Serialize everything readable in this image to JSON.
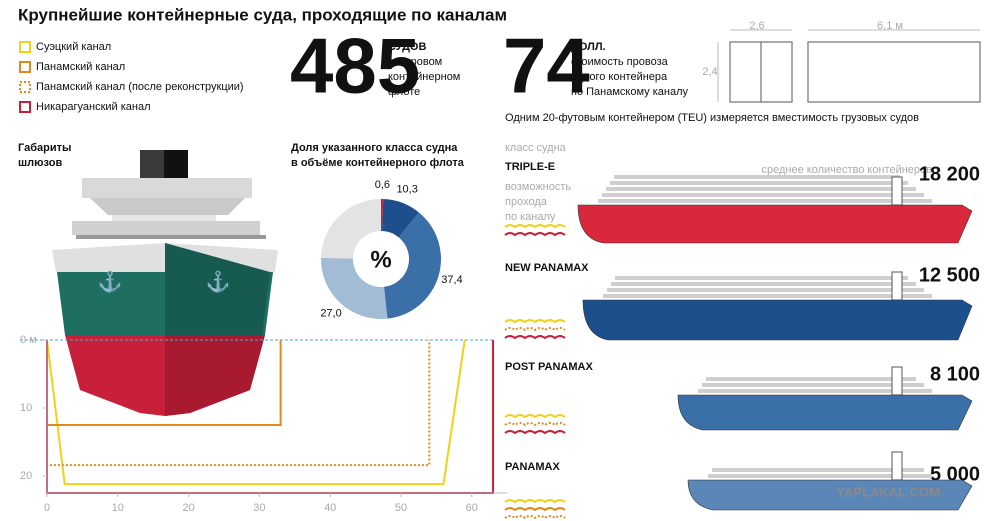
{
  "title": "Крупнейшие контейнерные суда, проходящие по каналам",
  "legend": [
    {
      "label": "Суэцкий канал",
      "color": "#f2d11b",
      "dashed": false
    },
    {
      "label": "Панамский канал",
      "color": "#e08a1e",
      "dashed": false
    },
    {
      "label": "Панамский канал (после реконструкции)",
      "color": "#e08a1e",
      "dashed": true
    },
    {
      "label": "Никарагуанский канал",
      "color": "#c8203a",
      "dashed": false
    }
  ],
  "stats": [
    {
      "value": "485",
      "lines": [
        "СУДОВ",
        "в мировом",
        "контейнерном",
        "флоте"
      ]
    },
    {
      "value": "74",
      "lines": [
        "ДОЛЛ.",
        "стоимость провоза",
        "одного контейнера",
        "по Панамскому каналу"
      ]
    }
  ],
  "container": {
    "width": "2,6",
    "height": "2,4",
    "length": "6,1 м",
    "note": "Одним 20-футовым контейнером (TEU) измеряется вместимость грузовых судов"
  },
  "locks": {
    "label": [
      "Габариты",
      "шлюзов"
    ],
    "xlim": [
      0,
      65
    ],
    "xticks": [
      0,
      10,
      20,
      30,
      40,
      50,
      60
    ],
    "ylim": [
      0,
      23
    ],
    "yticks": [
      {
        "value": 0,
        "label": "0 м"
      },
      10,
      20
    ],
    "outlines": [
      {
        "x": [
          0,
          2.5,
          56,
          59
        ],
        "y": [
          0,
          21.2,
          21.2,
          0
        ]
      },
      {
        "x": [
          0,
          0,
          33,
          33
        ],
        "y": [
          0,
          12.5,
          12.5,
          0
        ]
      },
      {
        "x": [
          0,
          0,
          54,
          54
        ],
        "y": [
          0,
          18.4,
          18.4,
          0
        ]
      },
      {
        "x": [
          0,
          0,
          63,
          63
        ],
        "y": [
          0,
          22.5,
          22.5,
          0
        ]
      }
    ]
  },
  "chart_data": {
    "type": "pie",
    "title": [
      "Доля указанного класса судна",
      "в объёме контейнерного флота"
    ],
    "center_label": "%",
    "values": [
      0.6,
      10.3,
      37.4,
      27.0,
      24.7
    ],
    "value_labels": [
      "0,6",
      "10,3",
      "37,4",
      "27,0",
      null
    ],
    "colors": [
      "#c8203a",
      "#1d4f8c",
      "#3a6fa8",
      "#a3bcd6",
      "#e3e3e3"
    ]
  },
  "ships": {
    "class_label": "класс судна",
    "count_label": "среднее количество контейнеров",
    "pass_label": [
      "возможность",
      "прохода",
      "по каналу"
    ],
    "items": [
      {
        "name": "TRIPLE-E",
        "count": "18 200",
        "color": "#d9283c",
        "canals": [
          0,
          3
        ]
      },
      {
        "name": "NEW PANAMAX",
        "count": "12 500",
        "color": "#1d4f8c",
        "canals": [
          0,
          2,
          3
        ]
      },
      {
        "name": "POST PANAMAX",
        "count": "8 100",
        "color": "#3a6fa8",
        "canals": [
          0,
          2,
          3
        ]
      },
      {
        "name": "PANAMAX",
        "count": "5 000",
        "color": "#5a86b8",
        "canals": [
          0,
          1,
          2,
          3
        ]
      }
    ]
  },
  "watermark": "YAPLAKAL.COM"
}
